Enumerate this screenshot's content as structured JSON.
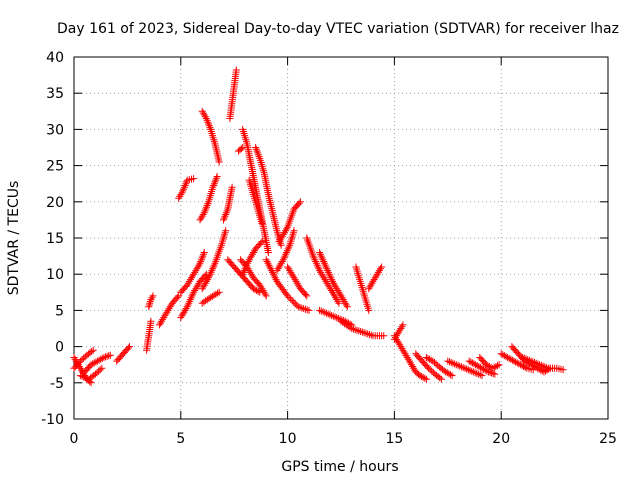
{
  "chart_data": {
    "type": "scatter",
    "title": "Day 161 of 2023, Sidereal Day-to-day VTEC variation (SDTVAR) for receiver lhaz",
    "xlabel": "GPS time / hours",
    "ylabel": "SDTVAR / TECUs",
    "xlim": [
      0,
      25
    ],
    "ylim": [
      -10,
      40
    ],
    "xticks": [
      0,
      5,
      10,
      15,
      20,
      25
    ],
    "yticks": [
      -10,
      -5,
      0,
      5,
      10,
      15,
      20,
      25,
      30,
      35,
      40
    ],
    "grid": true,
    "marker": "+",
    "color": "#ff0000",
    "series": [
      {
        "name": "SDTVAR",
        "segments": [
          [
            [
              0.0,
              -1.5
            ],
            [
              0.2,
              -2.5
            ],
            [
              0.4,
              -3.5
            ],
            [
              0.6,
              -4.5
            ],
            [
              0.8,
              -5.0
            ]
          ],
          [
            [
              0.0,
              -3.0
            ],
            [
              0.3,
              -2.0
            ],
            [
              0.6,
              -1.2
            ],
            [
              0.9,
              -0.5
            ]
          ],
          [
            [
              0.5,
              -3.5
            ],
            [
              0.8,
              -2.5
            ],
            [
              1.1,
              -2.0
            ],
            [
              1.4,
              -1.5
            ],
            [
              1.7,
              -1.2
            ]
          ],
          [
            [
              0.3,
              -4.0
            ],
            [
              0.7,
              -4.5
            ],
            [
              1.0,
              -3.8
            ],
            [
              1.3,
              -3.0
            ]
          ],
          [
            [
              2.0,
              -2.0
            ],
            [
              2.3,
              -1.0
            ],
            [
              2.6,
              0.0
            ]
          ],
          [
            [
              3.4,
              -0.5
            ],
            [
              3.5,
              1.5
            ],
            [
              3.6,
              3.5
            ]
          ],
          [
            [
              3.5,
              5.5
            ],
            [
              3.6,
              6.5
            ],
            [
              3.7,
              7.0
            ]
          ],
          [
            [
              4.0,
              3.0
            ],
            [
              4.3,
              4.5
            ],
            [
              4.6,
              6.0
            ],
            [
              4.9,
              7.0
            ]
          ],
          [
            [
              5.0,
              4.0
            ],
            [
              5.3,
              5.5
            ],
            [
              5.6,
              7.5
            ],
            [
              5.9,
              9.0
            ],
            [
              6.2,
              10.0
            ]
          ],
          [
            [
              5.0,
              7.5
            ],
            [
              5.3,
              8.5
            ],
            [
              5.6,
              10.0
            ],
            [
              5.9,
              11.5
            ],
            [
              6.1,
              13.0
            ]
          ],
          [
            [
              4.9,
              20.5
            ],
            [
              5.1,
              21.5
            ],
            [
              5.3,
              23.0
            ],
            [
              5.6,
              23.2
            ]
          ],
          [
            [
              5.9,
              17.5
            ],
            [
              6.1,
              18.5
            ],
            [
              6.3,
              20.0
            ],
            [
              6.5,
              22.0
            ],
            [
              6.7,
              23.5
            ]
          ],
          [
            [
              6.0,
              32.5
            ],
            [
              6.2,
              31.5
            ],
            [
              6.4,
              30.0
            ],
            [
              6.6,
              28.0
            ],
            [
              6.8,
              25.5
            ]
          ],
          [
            [
              6.0,
              8.0
            ],
            [
              6.3,
              9.5
            ],
            [
              6.6,
              11.5
            ],
            [
              6.9,
              14.0
            ],
            [
              7.1,
              16.0
            ]
          ],
          [
            [
              6.0,
              6.0
            ],
            [
              6.4,
              6.8
            ],
            [
              6.8,
              7.5
            ]
          ],
          [
            [
              7.0,
              17.5
            ],
            [
              7.2,
              19.0
            ],
            [
              7.4,
              22.0
            ]
          ],
          [
            [
              7.3,
              31.5
            ],
            [
              7.6,
              38.2
            ]
          ],
          [
            [
              7.7,
              27.0
            ],
            [
              7.9,
              27.5
            ]
          ],
          [
            [
              7.2,
              12.0
            ],
            [
              7.5,
              11.0
            ],
            [
              7.8,
              10.0
            ],
            [
              8.1,
              9.0
            ],
            [
              8.4,
              8.0
            ],
            [
              8.7,
              7.5
            ]
          ],
          [
            [
              7.8,
              12.0
            ],
            [
              8.1,
              11.0
            ],
            [
              8.4,
              9.5
            ],
            [
              8.7,
              8.5
            ],
            [
              9.0,
              7.0
            ]
          ],
          [
            [
              7.9,
              30.0
            ],
            [
              8.1,
              28.0
            ],
            [
              8.3,
              25.0
            ],
            [
              8.5,
              22.0
            ],
            [
              8.7,
              19.0
            ],
            [
              8.9,
              16.0
            ],
            [
              9.1,
              13.0
            ]
          ],
          [
            [
              8.2,
              23.0
            ],
            [
              8.4,
              21.0
            ],
            [
              8.6,
              19.0
            ],
            [
              8.8,
              17.0
            ]
          ],
          [
            [
              8.5,
              27.5
            ],
            [
              8.7,
              26.0
            ],
            [
              8.9,
              24.0
            ],
            [
              9.1,
              21.0
            ],
            [
              9.3,
              18.5
            ],
            [
              9.5,
              16.0
            ],
            [
              9.7,
              14.0
            ]
          ],
          [
            [
              7.9,
              10.0
            ],
            [
              8.2,
              12.0
            ],
            [
              8.5,
              13.5
            ],
            [
              8.8,
              14.5
            ]
          ],
          [
            [
              9.0,
              12.0
            ],
            [
              9.5,
              9.0
            ],
            [
              10.0,
              7.0
            ],
            [
              10.5,
              5.5
            ],
            [
              11.0,
              5.0
            ]
          ],
          [
            [
              9.5,
              10.5
            ],
            [
              9.8,
              12.0
            ],
            [
              10.1,
              14.0
            ],
            [
              10.3,
              16.0
            ]
          ],
          [
            [
              9.6,
              14.5
            ],
            [
              10.0,
              16.5
            ],
            [
              10.3,
              19.0
            ],
            [
              10.6,
              20.0
            ]
          ],
          [
            [
              10.0,
              11.0
            ],
            [
              10.3,
              9.5
            ],
            [
              10.6,
              8.0
            ],
            [
              10.9,
              7.0
            ]
          ],
          [
            [
              10.9,
              15.0
            ],
            [
              11.2,
              12.5
            ],
            [
              11.5,
              10.5
            ],
            [
              11.8,
              9.0
            ],
            [
              12.1,
              7.5
            ],
            [
              12.4,
              6.0
            ]
          ],
          [
            [
              11.5,
              13.0
            ],
            [
              11.8,
              11.0
            ],
            [
              12.1,
              9.0
            ],
            [
              12.5,
              7.0
            ],
            [
              12.8,
              5.5
            ]
          ],
          [
            [
              11.5,
              5.0
            ],
            [
              11.9,
              4.5
            ],
            [
              12.3,
              4.0
            ],
            [
              12.7,
              3.5
            ],
            [
              13.0,
              3.0
            ]
          ],
          [
            [
              13.2,
              11.0
            ],
            [
              13.4,
              9.0
            ],
            [
              13.6,
              7.0
            ],
            [
              13.8,
              5.0
            ]
          ],
          [
            [
              12.5,
              3.5
            ],
            [
              13.0,
              2.5
            ],
            [
              13.5,
              2.0
            ],
            [
              14.0,
              1.5
            ],
            [
              14.5,
              1.5
            ]
          ],
          [
            [
              13.8,
              8.0
            ],
            [
              14.4,
              11.0
            ]
          ],
          [
            [
              15.0,
              1.0
            ],
            [
              15.2,
              2.0
            ],
            [
              15.4,
              3.0
            ]
          ],
          [
            [
              15.0,
              1.5
            ],
            [
              15.2,
              0.5
            ],
            [
              15.4,
              -0.5
            ],
            [
              15.6,
              -1.5
            ],
            [
              15.8,
              -2.5
            ],
            [
              16.0,
              -3.5
            ],
            [
              16.2,
              -4.0
            ],
            [
              16.5,
              -4.5
            ]
          ],
          [
            [
              16.0,
              -1.0
            ],
            [
              16.3,
              -2.0
            ],
            [
              16.6,
              -3.0
            ],
            [
              16.9,
              -3.8
            ],
            [
              17.2,
              -4.5
            ]
          ],
          [
            [
              16.5,
              -1.5
            ],
            [
              16.8,
              -2.0
            ],
            [
              17.1,
              -2.8
            ],
            [
              17.4,
              -3.5
            ],
            [
              17.7,
              -4.0
            ]
          ],
          [
            [
              17.5,
              -2.0
            ],
            [
              17.9,
              -2.5
            ],
            [
              18.3,
              -3.0
            ],
            [
              18.7,
              -3.5
            ],
            [
              19.1,
              -4.0
            ]
          ],
          [
            [
              18.5,
              -2.0
            ],
            [
              18.8,
              -2.5
            ],
            [
              19.1,
              -3.0
            ],
            [
              19.4,
              -3.5
            ],
            [
              19.7,
              -3.8
            ]
          ],
          [
            [
              19.0,
              -1.5
            ],
            [
              19.3,
              -2.5
            ],
            [
              19.6,
              -3.0
            ],
            [
              19.9,
              -2.5
            ]
          ],
          [
            [
              20.0,
              -1.0
            ],
            [
              20.3,
              -1.5
            ],
            [
              20.6,
              -2.0
            ],
            [
              20.9,
              -2.5
            ],
            [
              21.2,
              -3.0
            ],
            [
              21.5,
              -3.2
            ]
          ],
          [
            [
              20.5,
              0.0
            ],
            [
              20.8,
              -1.0
            ],
            [
              21.1,
              -2.0
            ],
            [
              21.4,
              -2.5
            ],
            [
              21.7,
              -3.0
            ],
            [
              22.0,
              -3.5
            ],
            [
              22.3,
              -3.0
            ]
          ],
          [
            [
              21.0,
              -1.5
            ],
            [
              21.4,
              -2.0
            ],
            [
              21.8,
              -2.5
            ],
            [
              22.2,
              -3.0
            ],
            [
              22.6,
              -3.0
            ],
            [
              22.9,
              -3.2
            ]
          ]
        ]
      }
    ]
  }
}
